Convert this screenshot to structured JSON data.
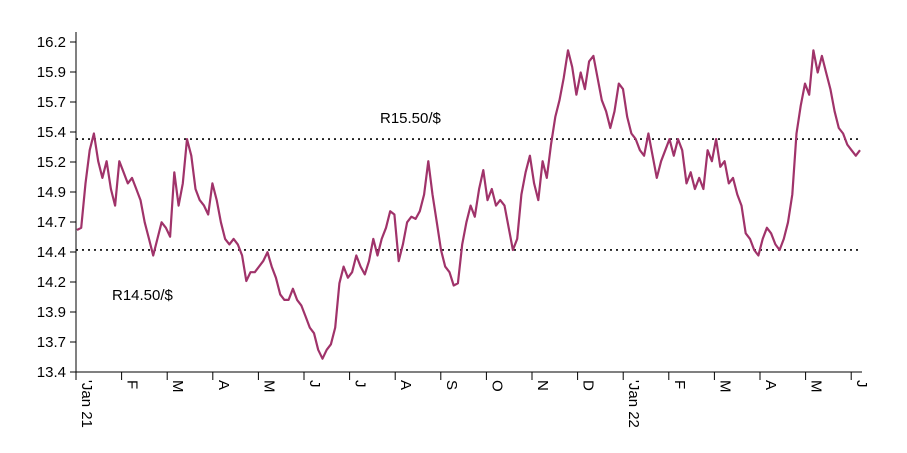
{
  "chart_data": {
    "type": "line",
    "title": "",
    "xlabel": "",
    "ylabel": "",
    "ylim": [
      13.4,
      16.35
    ],
    "yticks": [
      "16.2",
      "15.9",
      "15.7",
      "15.4",
      "15.2",
      "14.9",
      "14.7",
      "14.4",
      "14.2",
      "13.9",
      "13.7",
      "13.4"
    ],
    "xticks": [
      "'Jan 21",
      "F",
      "M",
      "A",
      "M",
      "J",
      "J",
      "A",
      "S",
      "O",
      "N",
      "D",
      "'Jan 22",
      "F",
      "M",
      "A",
      "M",
      "J"
    ],
    "grid": false,
    "reference_lines": [
      {
        "label": "R15.50/$",
        "value": 15.5
      },
      {
        "label": "R14.50/$",
        "value": 14.5
      }
    ],
    "series": [
      {
        "name": "",
        "color": "#a0336a",
        "x_start": "2021-01-01",
        "x_end": "2022-06-15",
        "values": [
          14.68,
          14.7,
          15.1,
          15.4,
          15.55,
          15.3,
          15.15,
          15.3,
          15.05,
          14.9,
          15.3,
          15.2,
          15.1,
          15.15,
          15.05,
          14.95,
          14.75,
          14.6,
          14.45,
          14.6,
          14.75,
          14.7,
          14.62,
          15.2,
          14.9,
          15.1,
          15.5,
          15.35,
          15.05,
          14.95,
          14.9,
          14.82,
          15.1,
          14.95,
          14.75,
          14.6,
          14.55,
          14.6,
          14.55,
          14.45,
          14.22,
          14.3,
          14.3,
          14.35,
          14.4,
          14.48,
          14.35,
          14.25,
          14.1,
          14.05,
          14.05,
          14.15,
          14.05,
          14.0,
          13.9,
          13.8,
          13.75,
          13.6,
          13.52,
          13.6,
          13.65,
          13.8,
          14.2,
          14.35,
          14.25,
          14.3,
          14.45,
          14.35,
          14.28,
          14.4,
          14.6,
          14.45,
          14.6,
          14.7,
          14.85,
          14.82,
          14.4,
          14.55,
          14.75,
          14.8,
          14.78,
          14.85,
          15.0,
          15.3,
          15.0,
          14.75,
          14.5,
          14.35,
          14.3,
          14.18,
          14.2,
          14.55,
          14.75,
          14.9,
          14.8,
          15.05,
          15.22,
          14.95,
          15.05,
          14.9,
          14.95,
          14.9,
          14.7,
          14.5,
          14.6,
          15.0,
          15.2,
          15.35,
          15.1,
          14.95,
          15.3,
          15.15,
          15.45,
          15.7,
          15.85,
          16.05,
          16.3,
          16.15,
          15.9,
          16.1,
          15.95,
          16.2,
          16.25,
          16.05,
          15.85,
          15.75,
          15.6,
          15.75,
          16.0,
          15.95,
          15.7,
          15.55,
          15.5,
          15.4,
          15.35,
          15.55,
          15.35,
          15.15,
          15.3,
          15.4,
          15.5,
          15.35,
          15.5,
          15.4,
          15.1,
          15.2,
          15.05,
          15.15,
          15.05,
          15.4,
          15.3,
          15.5,
          15.25,
          15.3,
          15.1,
          15.15,
          15.0,
          14.9,
          14.65,
          14.6,
          14.5,
          14.45,
          14.6,
          14.7,
          14.65,
          14.55,
          14.5,
          14.6,
          14.75,
          15.0,
          15.55,
          15.8,
          16.0,
          15.9,
          16.3,
          16.1,
          16.25,
          16.1,
          15.95,
          15.75,
          15.6,
          15.55,
          15.45,
          15.4,
          15.35,
          15.4
        ]
      }
    ]
  }
}
